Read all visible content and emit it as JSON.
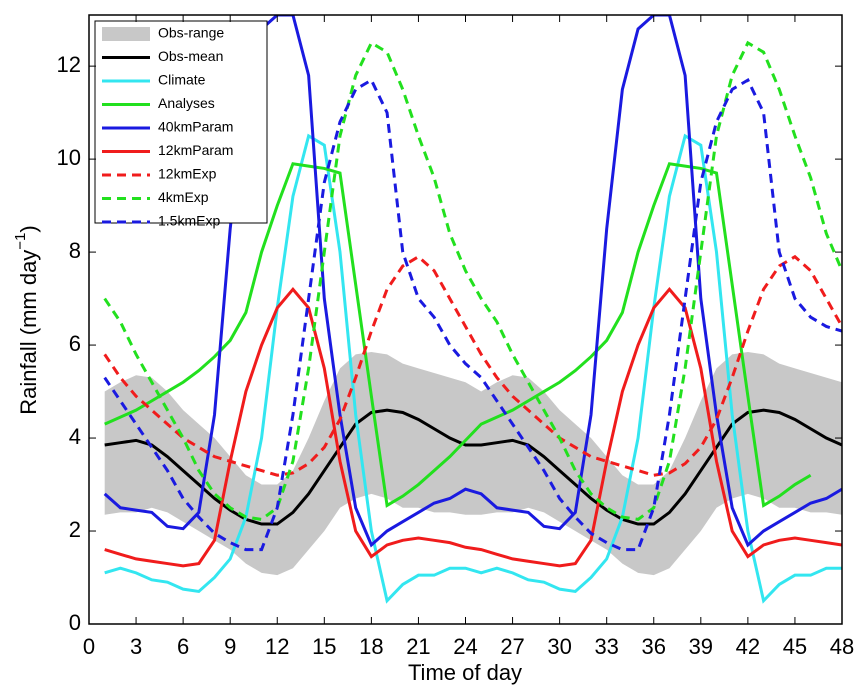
{
  "chart_data": {
    "type": "line",
    "x_label": "Time of day",
    "y_label": {
      "text": "Rainfall (mm day",
      "superscript": "−1",
      "suffix": ")"
    },
    "x": [
      1,
      2,
      3,
      4,
      5,
      6,
      7,
      8,
      9,
      10,
      11,
      12,
      13,
      14,
      15,
      16,
      17,
      18,
      19,
      20,
      21,
      22,
      23,
      24,
      25,
      26,
      27,
      28,
      29,
      30,
      31,
      32,
      33,
      34,
      35,
      36,
      37,
      38,
      39,
      40,
      41,
      42,
      43,
      44,
      45,
      46,
      47,
      48
    ],
    "xlim": [
      0,
      48
    ],
    "xticks": [
      0,
      3,
      6,
      9,
      12,
      15,
      18,
      21,
      24,
      27,
      30,
      33,
      36,
      39,
      42,
      45,
      48
    ],
    "ylim": [
      0,
      13.1
    ],
    "yticks": [
      0,
      2,
      4,
      6,
      8,
      10,
      12
    ],
    "series": [
      {
        "name": "Obs-range",
        "color": "#c8c8c8",
        "band": true,
        "low": [
          2.35,
          2.4,
          2.4,
          2.5,
          2.4,
          2.2,
          2.0,
          1.8,
          1.6,
          1.3,
          1.1,
          1.05,
          1.2,
          1.6,
          2.0,
          2.5,
          2.7,
          2.8,
          2.7,
          2.5,
          2.5,
          2.4,
          2.4,
          2.35,
          2.35,
          2.4,
          2.4,
          2.5,
          2.4,
          2.2,
          2.0,
          1.8,
          1.6,
          1.3,
          1.1,
          1.05,
          1.2,
          1.6,
          2.0,
          2.5,
          2.7,
          2.8,
          2.7,
          2.5,
          2.5,
          2.4,
          2.4,
          2.35
        ],
        "high": [
          5.0,
          5.2,
          5.35,
          5.3,
          5.0,
          4.6,
          4.3,
          4.0,
          3.6,
          3.2,
          3.0,
          3.0,
          3.3,
          4.0,
          4.8,
          5.5,
          5.8,
          5.85,
          5.8,
          5.6,
          5.5,
          5.4,
          5.3,
          5.2,
          5.0,
          5.2,
          5.35,
          5.3,
          5.0,
          4.6,
          4.3,
          4.0,
          3.6,
          3.2,
          3.0,
          3.0,
          3.3,
          4.0,
          4.8,
          5.5,
          5.8,
          5.85,
          5.8,
          5.6,
          5.5,
          5.4,
          5.3,
          5.2
        ]
      },
      {
        "name": "Obs-mean",
        "color": "#000000",
        "dashed": false,
        "values": [
          3.85,
          3.9,
          3.95,
          3.85,
          3.6,
          3.3,
          3.0,
          2.7,
          2.45,
          2.25,
          2.15,
          2.15,
          2.4,
          2.8,
          3.3,
          3.8,
          4.3,
          4.55,
          4.6,
          4.55,
          4.4,
          4.2,
          4.0,
          3.85,
          3.85,
          3.9,
          3.95,
          3.85,
          3.6,
          3.3,
          3.0,
          2.7,
          2.45,
          2.25,
          2.15,
          2.15,
          2.4,
          2.8,
          3.3,
          3.8,
          4.3,
          4.55,
          4.6,
          4.55,
          4.4,
          4.2,
          4.0,
          3.85
        ]
      },
      {
        "name": "Climate",
        "color": "#33e6f0",
        "dashed": false,
        "values": [
          1.1,
          1.2,
          1.1,
          0.95,
          0.9,
          0.75,
          0.7,
          1.0,
          1.4,
          2.3,
          4.0,
          6.8,
          9.2,
          10.5,
          10.3,
          8.0,
          4.5,
          2.0,
          0.5,
          0.85,
          1.05,
          1.05,
          1.2,
          1.2,
          1.1,
          1.2,
          1.1,
          0.95,
          0.9,
          0.75,
          0.7,
          1.0,
          1.4,
          2.3,
          4.0,
          6.8,
          9.2,
          10.5,
          10.3,
          8.0,
          4.5,
          2.0,
          0.5,
          0.85,
          1.05,
          1.05,
          1.2,
          1.2
        ]
      },
      {
        "name": "Analyses",
        "color": "#22e01e",
        "dashed": false,
        "values": [
          4.3,
          4.45,
          4.6,
          4.8,
          5.0,
          5.2,
          5.45,
          5.75,
          6.1,
          6.7,
          8.0,
          9.0,
          9.9,
          9.85,
          9.8,
          9.7,
          7.3,
          4.9,
          2.55,
          2.75,
          3.0,
          3.3,
          3.6,
          3.95,
          4.3,
          4.45,
          4.6,
          4.8,
          5.0,
          5.2,
          5.45,
          5.75,
          6.1,
          6.7,
          8.0,
          9.0,
          9.9,
          9.85,
          9.8,
          9.7,
          7.3,
          4.9,
          2.55,
          2.75,
          3.0,
          3.2,
          null,
          null
        ]
      },
      {
        "name": "40kmParam",
        "color": "#1a1ae0",
        "dashed": false,
        "values": [
          2.8,
          2.5,
          2.45,
          2.4,
          2.1,
          2.05,
          2.4,
          4.5,
          8.5,
          11.5,
          12.8,
          13.1,
          13.1,
          11.8,
          7.0,
          4.5,
          2.5,
          1.7,
          2.0,
          2.2,
          2.4,
          2.6,
          2.7,
          2.9,
          2.8,
          2.5,
          2.45,
          2.4,
          2.1,
          2.05,
          2.4,
          4.5,
          8.5,
          11.5,
          12.8,
          13.1,
          13.1,
          11.8,
          7.0,
          4.5,
          2.5,
          1.7,
          2.0,
          2.2,
          2.4,
          2.6,
          2.7,
          2.9
        ]
      },
      {
        "name": "12kmParam",
        "color": "#f01c1c",
        "dashed": false,
        "values": [
          1.6,
          1.5,
          1.4,
          1.35,
          1.3,
          1.25,
          1.3,
          1.8,
          3.5,
          5.0,
          6.0,
          6.8,
          7.2,
          6.8,
          5.5,
          3.5,
          2.0,
          1.45,
          1.7,
          1.8,
          1.85,
          1.8,
          1.75,
          1.65,
          1.6,
          1.5,
          1.4,
          1.35,
          1.3,
          1.25,
          1.3,
          1.8,
          3.5,
          5.0,
          6.0,
          6.8,
          7.2,
          6.8,
          5.5,
          3.5,
          2.0,
          1.45,
          1.7,
          1.8,
          1.85,
          1.8,
          1.75,
          1.7
        ]
      },
      {
        "name": "12kmExp",
        "color": "#f01c1c",
        "dashed": true,
        "values": [
          5.8,
          5.3,
          4.9,
          4.6,
          4.3,
          4.0,
          3.8,
          3.6,
          3.5,
          3.4,
          3.3,
          3.2,
          3.25,
          3.45,
          3.8,
          4.4,
          5.3,
          6.3,
          7.2,
          7.7,
          7.9,
          7.6,
          7.0,
          6.4,
          5.8,
          5.3,
          4.9,
          4.6,
          4.3,
          4.0,
          3.8,
          3.6,
          3.5,
          3.4,
          3.3,
          3.2,
          3.25,
          3.45,
          3.8,
          4.4,
          5.3,
          6.3,
          7.2,
          7.7,
          7.9,
          7.6,
          7.0,
          6.4
        ]
      },
      {
        "name": "4kmExp",
        "color": "#22e01e",
        "dashed": true,
        "values": [
          7.0,
          6.5,
          5.8,
          5.2,
          4.6,
          4.0,
          3.3,
          2.8,
          2.5,
          2.3,
          2.25,
          2.5,
          3.5,
          5.5,
          8.0,
          10.5,
          11.8,
          12.5,
          12.3,
          11.5,
          10.5,
          9.6,
          8.4,
          7.6,
          7.0,
          6.5,
          5.8,
          5.2,
          4.6,
          4.0,
          3.3,
          2.8,
          2.5,
          2.3,
          2.25,
          2.5,
          3.5,
          5.5,
          8.0,
          10.5,
          11.8,
          12.5,
          12.3,
          11.5,
          10.5,
          9.6,
          8.4,
          7.6
        ]
      },
      {
        "name": "1.5kmExp",
        "color": "#1a1ae0",
        "dashed": true,
        "values": [
          5.3,
          4.8,
          4.3,
          3.8,
          3.3,
          2.7,
          2.3,
          1.95,
          1.75,
          1.6,
          1.6,
          2.5,
          4.5,
          7.0,
          9.5,
          10.8,
          11.5,
          11.7,
          11.0,
          8.0,
          7.0,
          6.6,
          6.0,
          5.6,
          5.3,
          4.8,
          4.3,
          3.8,
          3.3,
          2.7,
          2.3,
          1.95,
          1.75,
          1.6,
          1.6,
          2.5,
          4.5,
          7.0,
          9.5,
          10.8,
          11.5,
          11.7,
          11.0,
          8.0,
          7.0,
          6.6,
          6.4,
          6.3
        ]
      }
    ]
  }
}
